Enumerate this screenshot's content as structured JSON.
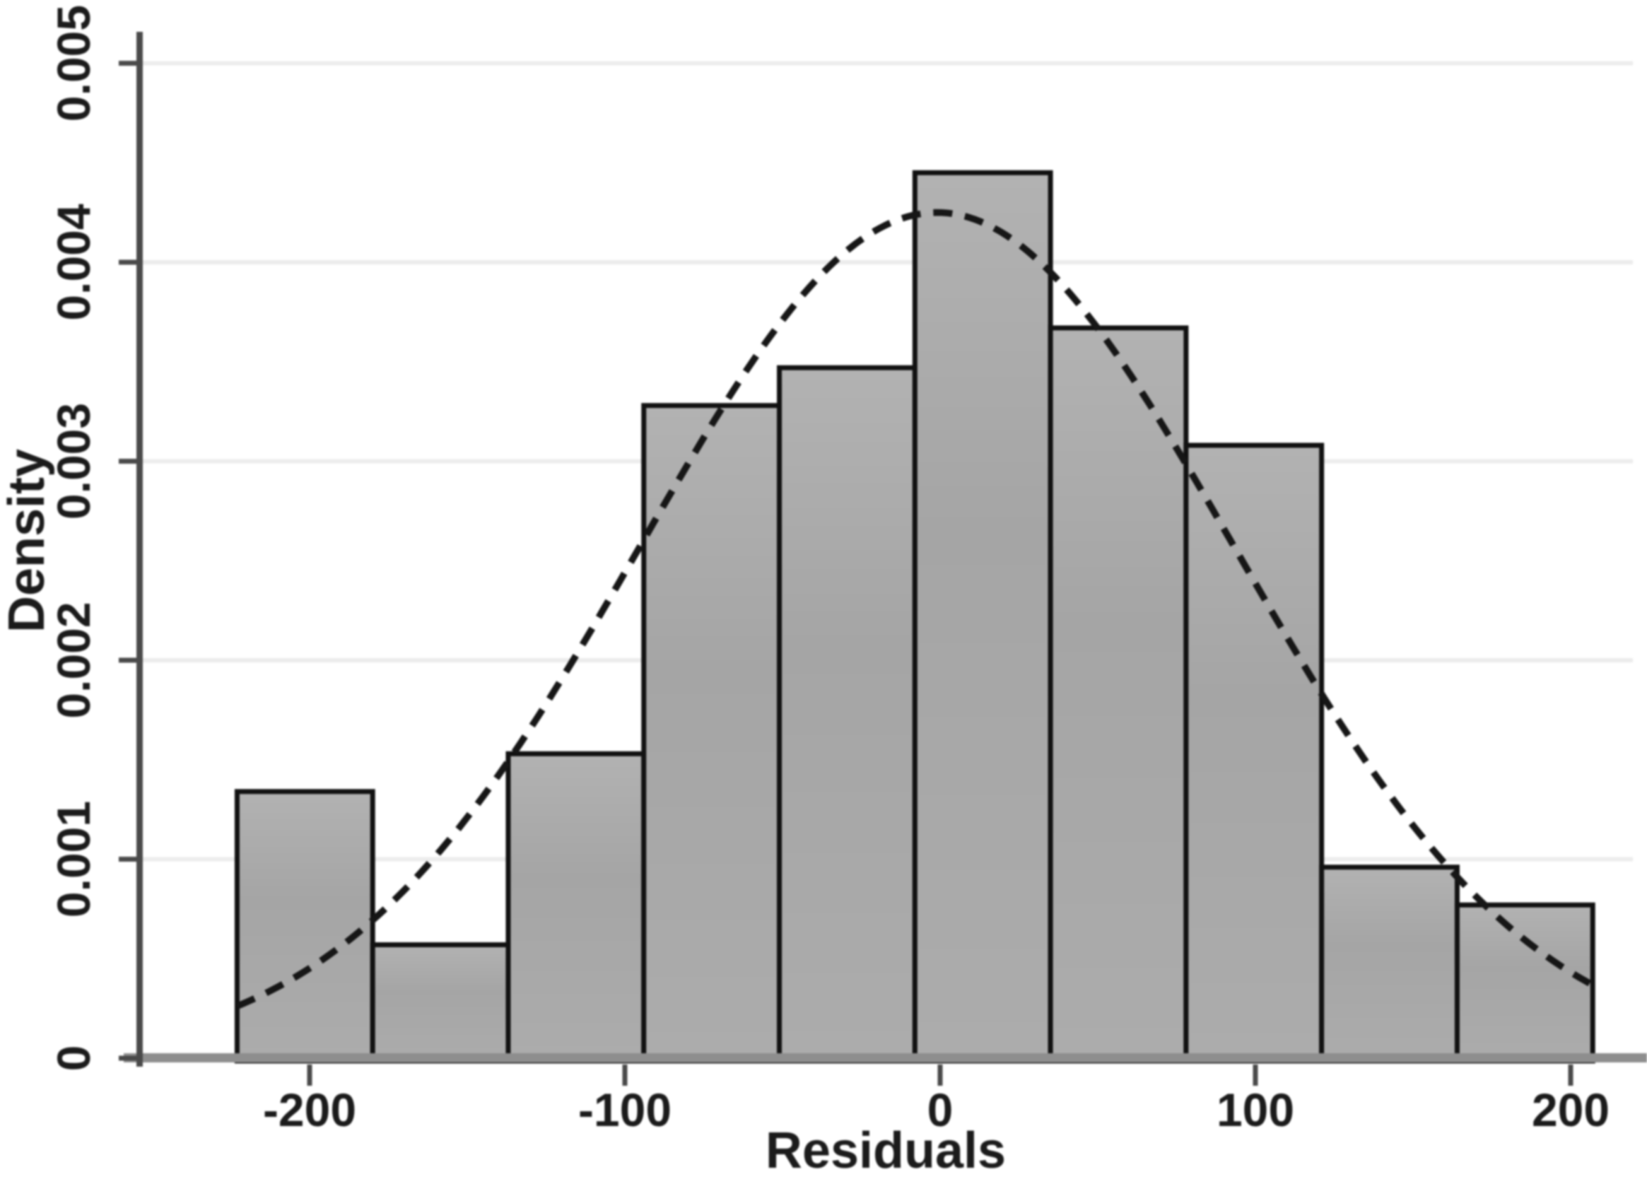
{
  "chart_data": {
    "type": "bar",
    "subtype": "histogram-with-normal-overlay",
    "title": "",
    "xlabel": "Residuals",
    "ylabel": "Density",
    "x_tick_values": [
      -200,
      -100,
      0,
      100,
      200
    ],
    "x_tick_labels": [
      "-200",
      "-100",
      "0",
      "100",
      "200"
    ],
    "y_tick_values": [
      0,
      0.001,
      0.002,
      0.003,
      0.004,
      0.005
    ],
    "y_tick_labels": [
      "0",
      "0.001",
      "0.002",
      "0.003",
      "0.004",
      "0.005"
    ],
    "xlim": [
      -254,
      220
    ],
    "ylim": [
      0,
      0.00516
    ],
    "grid": "horizontal-light",
    "legend": "none",
    "bin_edges": [
      -223,
      -180,
      -137,
      -94,
      -51,
      -8,
      35,
      78,
      121,
      164,
      207
    ],
    "densities": [
      0.00134,
      0.00057,
      0.00153,
      0.00328,
      0.00347,
      0.00445,
      0.00367,
      0.00308,
      0.00096,
      0.00077
    ],
    "normal_overlay": {
      "curve": "normal-density",
      "mean": -1,
      "sd": 94,
      "peak_density": 0.00425,
      "line_style": "dashed",
      "range": [
        -223,
        207
      ]
    }
  },
  "colors": {
    "background": "#ffffff",
    "bar_fill_top": "#b2b2b2",
    "bar_fill_mid": "#a5a5a5",
    "bar_fill_bottom": "#acacac",
    "bar_border": "#111111",
    "curve": "#161616",
    "gridline": "#ececec",
    "y_axis": "#4a4a4a",
    "x_axis": "#8e8e8e",
    "tick": "#4a4a4a",
    "text": "#1b1b1b"
  }
}
